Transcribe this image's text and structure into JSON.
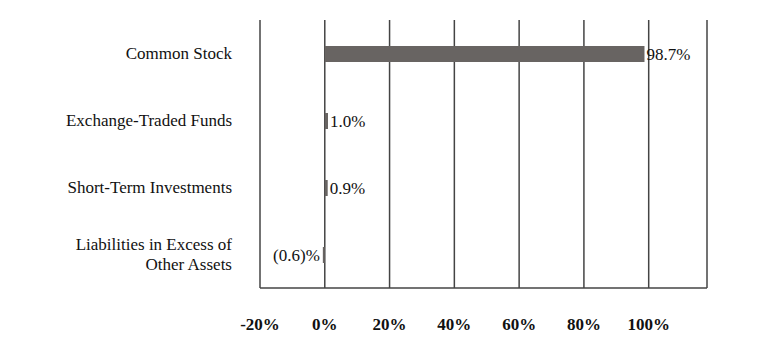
{
  "chart_data": {
    "type": "bar",
    "orientation": "horizontal",
    "categories": [
      "Common Stock",
      "Exchange-Traded Funds",
      "Short-Term Investments",
      "Liabilities in Excess of Other Assets"
    ],
    "values": [
      98.7,
      1.0,
      0.9,
      -0.6
    ],
    "value_labels": [
      "98.7%",
      "1.0%",
      "0.9%",
      "(0.6)%"
    ],
    "color": "#686462",
    "xlim": [
      -20,
      118
    ],
    "xticks": [
      {
        "value": -20,
        "label": "-20%"
      },
      {
        "value": 0,
        "label": "0%"
      },
      {
        "value": 20,
        "label": "20%"
      },
      {
        "value": 40,
        "label": "40%"
      },
      {
        "value": 60,
        "label": "60%"
      },
      {
        "value": 80,
        "label": "80%"
      },
      {
        "value": 100,
        "label": "100%"
      }
    ],
    "grid": true,
    "data_labels": true
  }
}
